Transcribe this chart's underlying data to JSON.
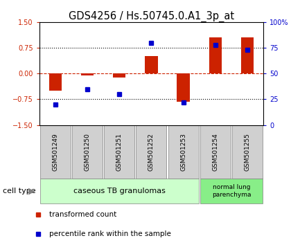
{
  "title": "GDS4256 / Hs.50745.0.A1_3p_at",
  "samples": [
    "GSM501249",
    "GSM501250",
    "GSM501251",
    "GSM501252",
    "GSM501253",
    "GSM501254",
    "GSM501255"
  ],
  "red_bars": [
    -0.5,
    -0.05,
    -0.12,
    0.5,
    -0.82,
    1.05,
    1.05
  ],
  "blue_squares_pct": [
    20,
    35,
    30,
    80,
    22,
    78,
    73
  ],
  "ylim": [
    -1.5,
    1.5
  ],
  "right_yticks": [
    0,
    25,
    50,
    75,
    100
  ],
  "left_yticks": [
    -1.5,
    -0.75,
    0,
    0.75,
    1.5
  ],
  "dotted_lines": [
    -0.75,
    0.75
  ],
  "red_dashed_line": 0,
  "bar_color": "#cc2200",
  "square_color": "#0000cc",
  "group1_count": 5,
  "group1_label": "caseous TB granulomas",
  "group1_color": "#ccffcc",
  "group2_count": 2,
  "group2_label": "normal lung\nparenchyma",
  "group2_color": "#88ee88",
  "cell_type_label": "cell type",
  "legend_red": "transformed count",
  "legend_blue": "percentile rank within the sample",
  "tick_box_color": "#d0d0d0",
  "title_fontsize": 10.5,
  "label_fontsize": 7
}
